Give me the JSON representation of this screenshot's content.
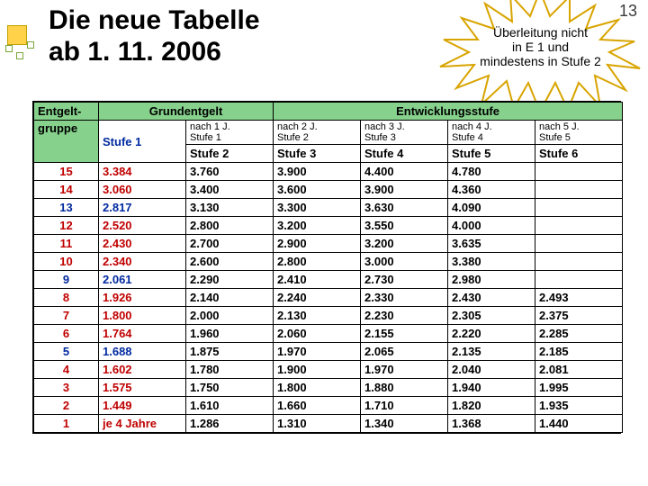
{
  "page_number": "13",
  "title_line1": "Die neue Tabelle",
  "title_line2": "ab 1. 11. 2006",
  "starburst": {
    "line1": "Überleitung nicht",
    "line2": "in E 1 und",
    "line3": "mindestens in Stufe 2",
    "fill": "#ffffff",
    "stroke": "#d8a400"
  },
  "colors": {
    "header_green": "#86d18b",
    "red": "#c00000",
    "blue": "#002aa0",
    "border": "#000000",
    "deco_yellow": "#ffd24a"
  },
  "table": {
    "h1": {
      "entgelt": "Entgelt-",
      "grund": "Grundentgelt",
      "entw": "Entwicklungsstufe"
    },
    "h2": {
      "gruppe": "gruppe",
      "stufe1": "Stufe 1",
      "sub": [
        "nach 1 J.\nStufe 1",
        "nach 2 J.\nStufe 2",
        "nach 3 J.\nStufe 3",
        "nach 4 J.\nStufe 4",
        "nach 5 J.\nStufe 5"
      ],
      "labels": [
        "Stufe 2",
        "Stufe 3",
        "Stufe 4",
        "Stufe 5",
        "Stufe 6"
      ]
    },
    "rows": [
      {
        "g": "15",
        "c": "red",
        "v": [
          "3.384",
          "3.760",
          "3.900",
          "4.400",
          "4.780",
          ""
        ]
      },
      {
        "g": "14",
        "c": "red",
        "v": [
          "3.060",
          "3.400",
          "3.600",
          "3.900",
          "4.360",
          ""
        ]
      },
      {
        "g": "13",
        "c": "blue",
        "v": [
          "2.817",
          "3.130",
          "3.300",
          "3.630",
          "4.090",
          ""
        ]
      },
      {
        "g": "12",
        "c": "red",
        "v": [
          "2.520",
          "2.800",
          "3.200",
          "3.550",
          "4.000",
          ""
        ]
      },
      {
        "g": "11",
        "c": "red",
        "v": [
          "2.430",
          "2.700",
          "2.900",
          "3.200",
          "3.635",
          ""
        ]
      },
      {
        "g": "10",
        "c": "red",
        "v": [
          "2.340",
          "2.600",
          "2.800",
          "3.000",
          "3.380",
          ""
        ]
      },
      {
        "g": "9",
        "c": "blue",
        "v": [
          "2.061",
          "2.290",
          "2.410",
          "2.730",
          "2.980",
          ""
        ]
      },
      {
        "g": "8",
        "c": "red",
        "v": [
          "1.926",
          "2.140",
          "2.240",
          "2.330",
          "2.430",
          "2.493"
        ]
      },
      {
        "g": "7",
        "c": "red",
        "v": [
          "1.800",
          "2.000",
          "2.130",
          "2.230",
          "2.305",
          "2.375"
        ]
      },
      {
        "g": "6",
        "c": "red",
        "v": [
          "1.764",
          "1.960",
          "2.060",
          "2.155",
          "2.220",
          "2.285"
        ]
      },
      {
        "g": "5",
        "c": "blue",
        "v": [
          "1.688",
          "1.875",
          "1.970",
          "2.065",
          "2.135",
          "2.185"
        ]
      },
      {
        "g": "4",
        "c": "red",
        "v": [
          "1.602",
          "1.780",
          "1.900",
          "1.970",
          "2.040",
          "2.081"
        ]
      },
      {
        "g": "3",
        "c": "red",
        "v": [
          "1.575",
          "1.750",
          "1.800",
          "1.880",
          "1.940",
          "1.995"
        ]
      },
      {
        "g": "2",
        "c": "red",
        "v": [
          "1.449",
          "1.610",
          "1.660",
          "1.710",
          "1.820",
          "1.935"
        ]
      },
      {
        "g": "1",
        "c": "red",
        "v": [
          "je 4 Jahre",
          "1.286",
          "1.310",
          "1.340",
          "1.368",
          "1.440"
        ]
      }
    ]
  }
}
